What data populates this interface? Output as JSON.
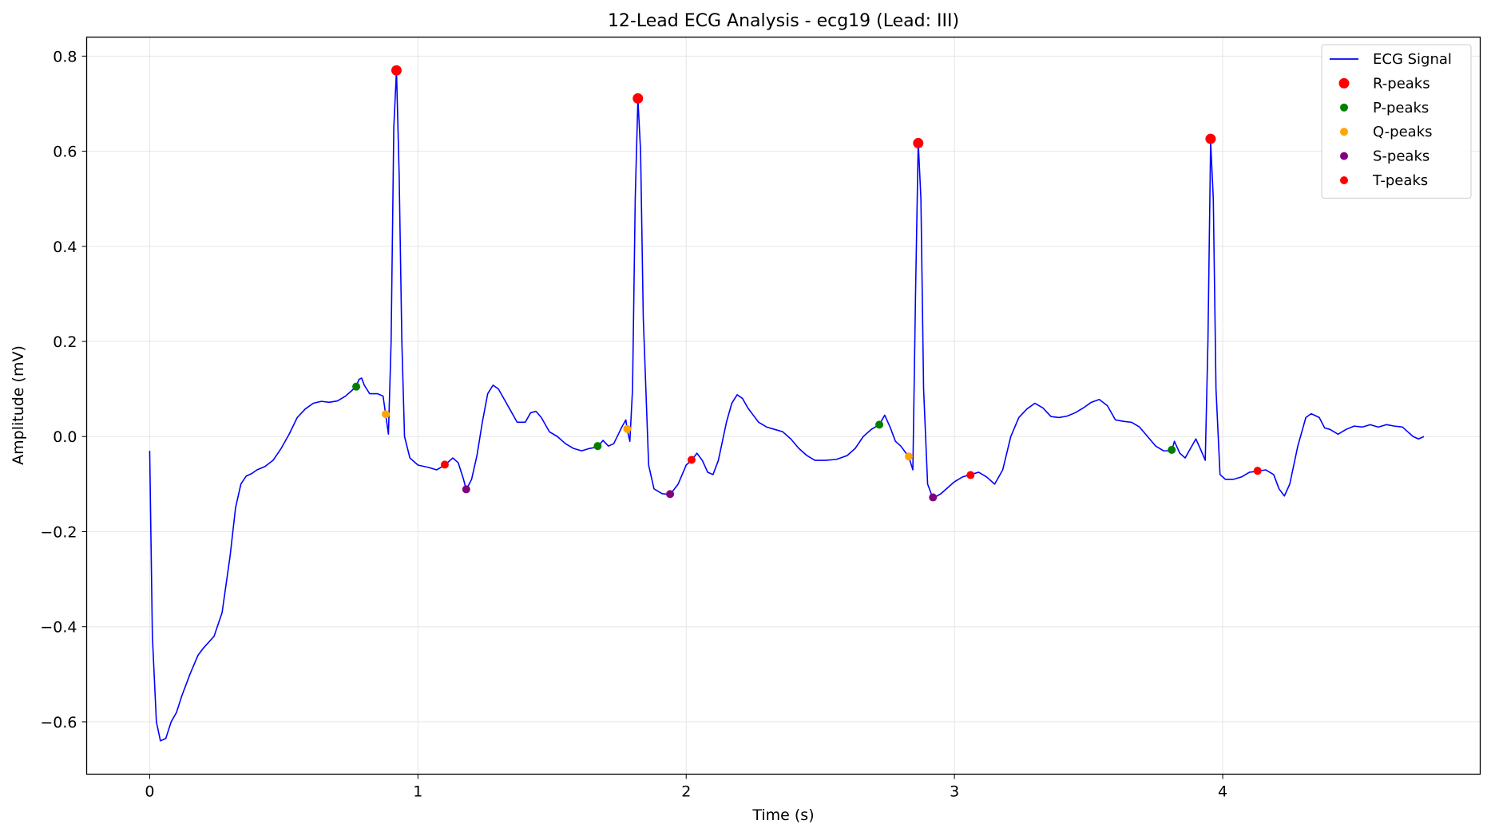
{
  "chart_data": {
    "type": "line",
    "title": "12-Lead ECG Analysis - ecg19 (Lead: III)",
    "xlabel": "Time (s)",
    "ylabel": "Amplitude (mV)",
    "xlim": [
      -0.235,
      4.96
    ],
    "ylim": [
      -0.71,
      0.84
    ],
    "xticks": [
      0,
      1,
      2,
      3,
      4
    ],
    "yticks": [
      -0.6,
      -0.4,
      -0.2,
      0.0,
      0.2,
      0.4,
      0.6,
      0.8
    ],
    "xtick_labels": [
      "0",
      "1",
      "2",
      "3",
      "4"
    ],
    "ytick_labels": [
      "−0.6",
      "−0.4",
      "−0.2",
      "0.0",
      "0.2",
      "0.4",
      "0.6",
      "0.8"
    ],
    "grid": true,
    "legend_position": "top-right",
    "signal": {
      "name": "ECG Signal",
      "color": "#0000ff",
      "points": [
        [
          0.0,
          -0.03
        ],
        [
          0.01,
          -0.42
        ],
        [
          0.025,
          -0.6
        ],
        [
          0.04,
          -0.64
        ],
        [
          0.06,
          -0.635
        ],
        [
          0.08,
          -0.6
        ],
        [
          0.1,
          -0.58
        ],
        [
          0.12,
          -0.545
        ],
        [
          0.15,
          -0.5
        ],
        [
          0.18,
          -0.46
        ],
        [
          0.2,
          -0.445
        ],
        [
          0.24,
          -0.42
        ],
        [
          0.27,
          -0.37
        ],
        [
          0.3,
          -0.25
        ],
        [
          0.32,
          -0.15
        ],
        [
          0.34,
          -0.1
        ],
        [
          0.36,
          -0.083
        ],
        [
          0.38,
          -0.078
        ],
        [
          0.4,
          -0.07
        ],
        [
          0.43,
          -0.063
        ],
        [
          0.46,
          -0.05
        ],
        [
          0.49,
          -0.025
        ],
        [
          0.52,
          0.005
        ],
        [
          0.55,
          0.04
        ],
        [
          0.58,
          0.058
        ],
        [
          0.61,
          0.07
        ],
        [
          0.64,
          0.074
        ],
        [
          0.67,
          0.072
        ],
        [
          0.7,
          0.075
        ],
        [
          0.73,
          0.085
        ],
        [
          0.75,
          0.095
        ],
        [
          0.77,
          0.105
        ],
        [
          0.78,
          0.12
        ],
        [
          0.79,
          0.123
        ],
        [
          0.8,
          0.108
        ],
        [
          0.82,
          0.09
        ],
        [
          0.85,
          0.09
        ],
        [
          0.87,
          0.085
        ],
        [
          0.88,
          0.045
        ],
        [
          0.89,
          0.005
        ],
        [
          0.9,
          0.2
        ],
        [
          0.91,
          0.65
        ],
        [
          0.92,
          0.77
        ],
        [
          0.93,
          0.55
        ],
        [
          0.94,
          0.2
        ],
        [
          0.95,
          0.0
        ],
        [
          0.97,
          -0.045
        ],
        [
          1.0,
          -0.06
        ],
        [
          1.04,
          -0.065
        ],
        [
          1.07,
          -0.07
        ],
        [
          1.1,
          -0.06
        ],
        [
          1.13,
          -0.045
        ],
        [
          1.15,
          -0.055
        ],
        [
          1.17,
          -0.09
        ],
        [
          1.18,
          -0.112
        ],
        [
          1.2,
          -0.09
        ],
        [
          1.22,
          -0.04
        ],
        [
          1.24,
          0.03
        ],
        [
          1.26,
          0.09
        ],
        [
          1.28,
          0.108
        ],
        [
          1.3,
          0.1
        ],
        [
          1.33,
          0.07
        ],
        [
          1.35,
          0.05
        ],
        [
          1.37,
          0.03
        ],
        [
          1.4,
          0.03
        ],
        [
          1.42,
          0.05
        ],
        [
          1.44,
          0.053
        ],
        [
          1.46,
          0.04
        ],
        [
          1.49,
          0.01
        ],
        [
          1.52,
          0.0
        ],
        [
          1.55,
          -0.015
        ],
        [
          1.58,
          -0.025
        ],
        [
          1.61,
          -0.03
        ],
        [
          1.64,
          -0.025
        ],
        [
          1.67,
          -0.022
        ],
        [
          1.69,
          -0.008
        ],
        [
          1.71,
          -0.02
        ],
        [
          1.73,
          -0.015
        ],
        [
          1.76,
          0.02
        ],
        [
          1.775,
          0.035
        ],
        [
          1.78,
          0.015
        ],
        [
          1.79,
          -0.01
        ],
        [
          1.8,
          0.1
        ],
        [
          1.81,
          0.5
        ],
        [
          1.82,
          0.71
        ],
        [
          1.83,
          0.6
        ],
        [
          1.84,
          0.25
        ],
        [
          1.86,
          -0.06
        ],
        [
          1.88,
          -0.11
        ],
        [
          1.91,
          -0.12
        ],
        [
          1.94,
          -0.122
        ],
        [
          1.97,
          -0.1
        ],
        [
          2.0,
          -0.06
        ],
        [
          2.02,
          -0.05
        ],
        [
          2.04,
          -0.035
        ],
        [
          2.06,
          -0.05
        ],
        [
          2.08,
          -0.075
        ],
        [
          2.1,
          -0.08
        ],
        [
          2.12,
          -0.05
        ],
        [
          2.15,
          0.03
        ],
        [
          2.17,
          0.07
        ],
        [
          2.19,
          0.088
        ],
        [
          2.21,
          0.08
        ],
        [
          2.23,
          0.06
        ],
        [
          2.25,
          0.045
        ],
        [
          2.27,
          0.03
        ],
        [
          2.3,
          0.02
        ],
        [
          2.33,
          0.015
        ],
        [
          2.36,
          0.01
        ],
        [
          2.39,
          -0.005
        ],
        [
          2.42,
          -0.025
        ],
        [
          2.45,
          -0.04
        ],
        [
          2.48,
          -0.05
        ],
        [
          2.52,
          -0.05
        ],
        [
          2.56,
          -0.048
        ],
        [
          2.6,
          -0.04
        ],
        [
          2.63,
          -0.025
        ],
        [
          2.66,
          0.0
        ],
        [
          2.69,
          0.015
        ],
        [
          2.72,
          0.025
        ],
        [
          2.74,
          0.045
        ],
        [
          2.76,
          0.02
        ],
        [
          2.78,
          -0.01
        ],
        [
          2.8,
          -0.02
        ],
        [
          2.83,
          -0.043
        ],
        [
          2.845,
          -0.07
        ],
        [
          2.855,
          0.3
        ],
        [
          2.865,
          0.62
        ],
        [
          2.875,
          0.5
        ],
        [
          2.885,
          0.1
        ],
        [
          2.9,
          -0.1
        ],
        [
          2.92,
          -0.13
        ],
        [
          2.95,
          -0.12
        ],
        [
          2.98,
          -0.105
        ],
        [
          3.0,
          -0.095
        ],
        [
          3.03,
          -0.085
        ],
        [
          3.06,
          -0.08
        ],
        [
          3.09,
          -0.075
        ],
        [
          3.12,
          -0.085
        ],
        [
          3.15,
          -0.1
        ],
        [
          3.18,
          -0.07
        ],
        [
          3.21,
          0.0
        ],
        [
          3.24,
          0.04
        ],
        [
          3.27,
          0.058
        ],
        [
          3.3,
          0.07
        ],
        [
          3.33,
          0.06
        ],
        [
          3.36,
          0.042
        ],
        [
          3.39,
          0.04
        ],
        [
          3.42,
          0.043
        ],
        [
          3.45,
          0.05
        ],
        [
          3.48,
          0.06
        ],
        [
          3.51,
          0.072
        ],
        [
          3.54,
          0.078
        ],
        [
          3.57,
          0.065
        ],
        [
          3.6,
          0.035
        ],
        [
          3.63,
          0.032
        ],
        [
          3.66,
          0.03
        ],
        [
          3.69,
          0.02
        ],
        [
          3.72,
          0.0
        ],
        [
          3.75,
          -0.02
        ],
        [
          3.78,
          -0.03
        ],
        [
          3.81,
          -0.03
        ],
        [
          3.82,
          -0.01
        ],
        [
          3.84,
          -0.035
        ],
        [
          3.86,
          -0.045
        ],
        [
          3.88,
          -0.025
        ],
        [
          3.9,
          -0.005
        ],
        [
          3.92,
          -0.03
        ],
        [
          3.935,
          -0.05
        ],
        [
          3.945,
          0.2
        ],
        [
          3.955,
          0.62
        ],
        [
          3.965,
          0.5
        ],
        [
          3.975,
          0.1
        ],
        [
          3.99,
          -0.08
        ],
        [
          4.01,
          -0.09
        ],
        [
          4.04,
          -0.09
        ],
        [
          4.07,
          -0.085
        ],
        [
          4.1,
          -0.075
        ],
        [
          4.13,
          -0.073
        ],
        [
          4.16,
          -0.07
        ],
        [
          4.19,
          -0.08
        ],
        [
          4.21,
          -0.11
        ],
        [
          4.23,
          -0.125
        ],
        [
          4.25,
          -0.1
        ],
        [
          4.28,
          -0.02
        ],
        [
          4.31,
          0.04
        ],
        [
          4.33,
          0.048
        ],
        [
          4.36,
          0.04
        ],
        [
          4.38,
          0.018
        ],
        [
          4.4,
          0.015
        ],
        [
          4.43,
          0.005
        ],
        [
          4.46,
          0.015
        ],
        [
          4.49,
          0.022
        ],
        [
          4.52,
          0.02
        ],
        [
          4.55,
          0.025
        ],
        [
          4.58,
          0.02
        ],
        [
          4.61,
          0.025
        ],
        [
          4.64,
          0.022
        ],
        [
          4.67,
          0.02
        ],
        [
          4.69,
          0.01
        ],
        [
          4.71,
          0.0
        ],
        [
          4.73,
          -0.005
        ],
        [
          4.75,
          0.0
        ]
      ]
    },
    "markers": [
      {
        "name": "R-peaks",
        "color": "#ff0000",
        "size": 6.5,
        "points": [
          [
            0.92,
            0.77
          ],
          [
            1.82,
            0.711
          ],
          [
            2.865,
            0.617
          ],
          [
            3.955,
            0.626
          ]
        ]
      },
      {
        "name": "P-peaks",
        "color": "#008000",
        "size": 5,
        "points": [
          [
            0.77,
            0.105
          ],
          [
            1.67,
            -0.02
          ],
          [
            2.72,
            0.025
          ],
          [
            3.81,
            -0.028
          ]
        ]
      },
      {
        "name": "Q-peaks",
        "color": "#ffa500",
        "size": 5,
        "points": [
          [
            0.88,
            0.047
          ],
          [
            1.78,
            0.016
          ],
          [
            2.83,
            -0.042
          ]
        ]
      },
      {
        "name": "S-peaks",
        "color": "#800080",
        "size": 5,
        "points": [
          [
            1.18,
            -0.111
          ],
          [
            1.94,
            -0.121
          ],
          [
            2.92,
            -0.128
          ]
        ]
      },
      {
        "name": "T-peaks",
        "color": "#ff0000",
        "size": 5,
        "points": [
          [
            1.1,
            -0.059
          ],
          [
            2.02,
            -0.049
          ],
          [
            3.06,
            -0.081
          ],
          [
            4.13,
            -0.072
          ]
        ]
      }
    ],
    "legend": [
      {
        "label": "ECG Signal",
        "kind": "line",
        "color": "#0000ff"
      },
      {
        "label": "R-peaks",
        "kind": "marker",
        "color": "#ff0000",
        "size": 6.5
      },
      {
        "label": "P-peaks",
        "kind": "marker",
        "color": "#008000",
        "size": 5
      },
      {
        "label": "Q-peaks",
        "kind": "marker",
        "color": "#ffa500",
        "size": 5
      },
      {
        "label": "S-peaks",
        "kind": "marker",
        "color": "#800080",
        "size": 5
      },
      {
        "label": "T-peaks",
        "kind": "marker",
        "color": "#ff0000",
        "size": 5
      }
    ]
  }
}
